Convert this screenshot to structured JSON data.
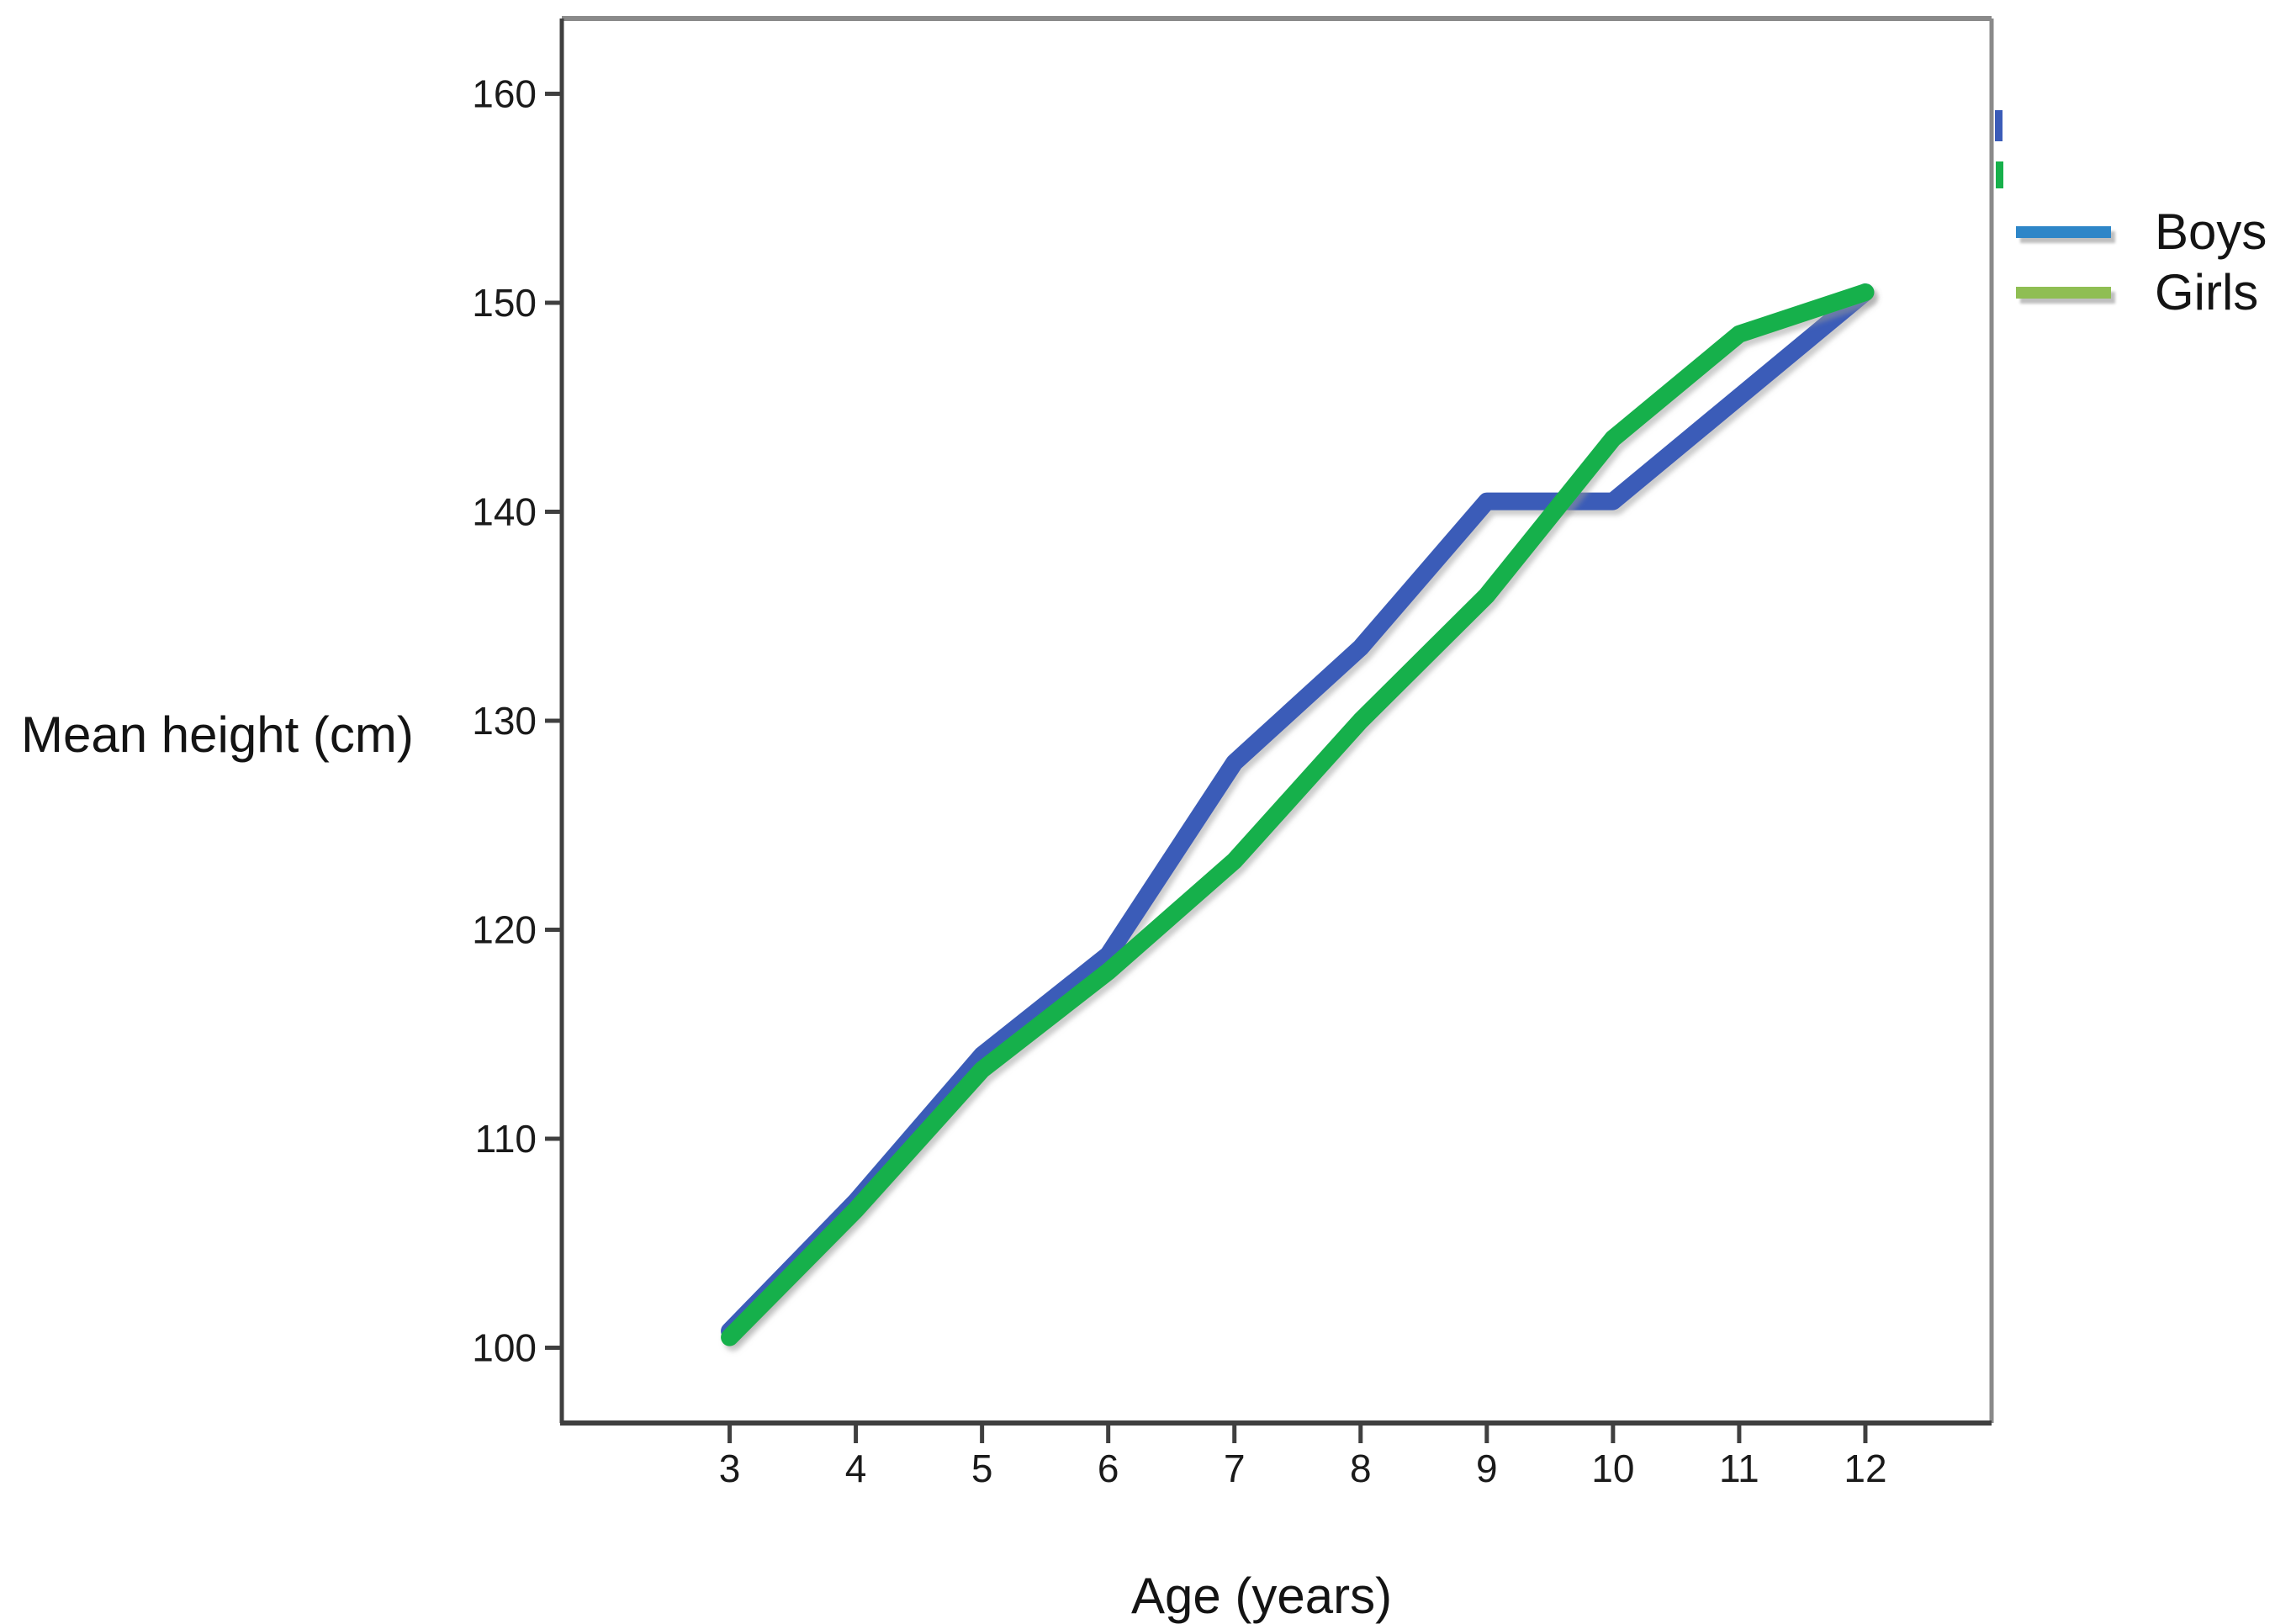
{
  "page": {
    "background": "#ffffff"
  },
  "chart_data": {
    "type": "line",
    "title": "",
    "xlabel": "Age (years)",
    "ylabel": "Mean height (cm)",
    "x": [
      3,
      4,
      5,
      6,
      7,
      8,
      9,
      10,
      11,
      12
    ],
    "xticks": [
      3,
      4,
      5,
      6,
      7,
      8,
      9,
      10,
      11,
      12
    ],
    "yticks": [
      100,
      110,
      120,
      130,
      140,
      150,
      160
    ],
    "xlim": [
      1.67,
      13.0
    ],
    "ylim": [
      96.4,
      163.6
    ],
    "grid": false,
    "legend_position": "outside-right-top",
    "series": [
      {
        "name": "Boys",
        "line_color": "#3b5cb8",
        "legend_color": "#2e86c8",
        "values": [
          100.8,
          107.0,
          114.0,
          118.8,
          128.0,
          133.5,
          140.5,
          140.5,
          145.5,
          150.5
        ]
      },
      {
        "name": "Girls",
        "line_color": "#17b04b",
        "legend_color": "#8fbe53",
        "values": [
          100.5,
          106.6,
          113.3,
          118.0,
          123.3,
          130.0,
          136.0,
          143.5,
          148.5,
          150.5
        ]
      }
    ],
    "frame_color": "#8a8a8a",
    "axis_color": "#3f3f3f",
    "tick_label_color": "#1a1a1a",
    "shadow_color": "#9a9a9a"
  }
}
